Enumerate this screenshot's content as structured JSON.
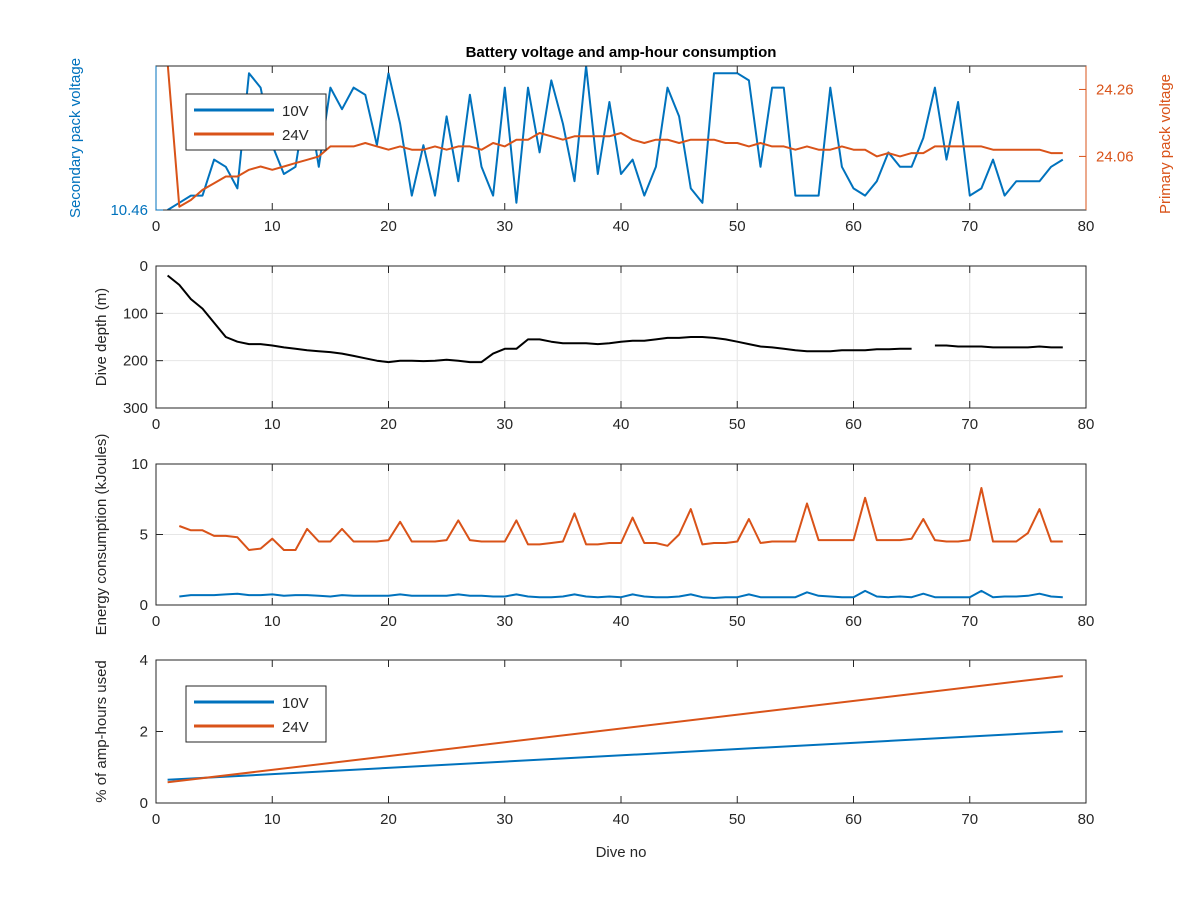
{
  "figure_title": "Battery voltage and amp-hour consumption",
  "colors": {
    "blue": "#0072BD",
    "orange": "#D95319",
    "black": "#000000",
    "grid": "#e6e6e6",
    "axis": "#262626"
  },
  "chart_data": [
    {
      "type": "line",
      "title": "Battery voltage and amp-hour consumption",
      "xlabel": "",
      "ylabel": "Secondary pack voltage",
      "ylabel_right": "Primary pack voltage",
      "xlim": [
        0,
        80
      ],
      "ylim": [
        10.46,
        10.66
      ],
      "ylim_right": [
        23.9,
        24.33
      ],
      "xticks": [
        0,
        10,
        20,
        30,
        40,
        50,
        60,
        70,
        80
      ],
      "yticks": [
        10.46
      ],
      "yticks_right": [
        24.06,
        24.26
      ],
      "grid": false,
      "legend": {
        "placement": "top-left",
        "entries": [
          "10V",
          "24V"
        ]
      },
      "series": [
        {
          "name": "10V",
          "axis": "left",
          "color": "#0072BD",
          "x": [
            1,
            2,
            3,
            4,
            5,
            6,
            7,
            8,
            9,
            10,
            11,
            12,
            13,
            14,
            15,
            16,
            17,
            18,
            19,
            20,
            21,
            22,
            23,
            24,
            25,
            26,
            27,
            28,
            29,
            30,
            31,
            32,
            33,
            34,
            35,
            36,
            37,
            38,
            39,
            40,
            41,
            42,
            43,
            44,
            45,
            46,
            47,
            48,
            49,
            50,
            51,
            52,
            53,
            54,
            55,
            56,
            57,
            58,
            59,
            60,
            61,
            62,
            63,
            64,
            65,
            66,
            67,
            68,
            69,
            70,
            71,
            72,
            73,
            74,
            75,
            76,
            77,
            78
          ],
          "y": [
            10.46,
            10.47,
            10.48,
            10.48,
            10.53,
            10.52,
            10.49,
            10.65,
            10.63,
            10.55,
            10.51,
            10.52,
            10.62,
            10.52,
            10.63,
            10.6,
            10.63,
            10.62,
            10.55,
            10.65,
            10.58,
            10.48,
            10.55,
            10.48,
            10.59,
            10.5,
            10.62,
            10.52,
            10.48,
            10.63,
            10.47,
            10.63,
            10.54,
            10.64,
            10.58,
            10.5,
            10.66,
            10.51,
            10.61,
            10.51,
            10.53,
            10.48,
            10.52,
            10.63,
            10.59,
            10.49,
            10.47,
            10.65,
            10.65,
            10.65,
            10.64,
            10.52,
            10.63,
            10.63,
            10.48,
            10.48,
            10.48,
            10.63,
            10.52,
            10.49,
            10.48,
            10.5,
            10.54,
            10.52,
            10.52,
            10.56,
            10.63,
            10.53,
            10.61,
            10.48,
            10.49,
            10.53,
            10.48,
            10.5,
            10.5,
            10.5,
            10.52,
            10.53
          ]
        },
        {
          "name": "24V",
          "axis": "right",
          "color": "#D95319",
          "x": [
            1,
            2,
            3,
            4,
            5,
            6,
            7,
            8,
            9,
            10,
            11,
            12,
            13,
            14,
            15,
            16,
            17,
            18,
            19,
            20,
            21,
            22,
            23,
            24,
            25,
            26,
            27,
            28,
            29,
            30,
            31,
            32,
            33,
            34,
            35,
            36,
            37,
            38,
            39,
            40,
            41,
            42,
            43,
            44,
            45,
            46,
            47,
            48,
            49,
            50,
            51,
            52,
            53,
            54,
            55,
            56,
            57,
            58,
            59,
            60,
            61,
            62,
            63,
            64,
            65,
            66,
            67,
            68,
            69,
            70,
            71,
            72,
            73,
            74,
            75,
            76,
            77,
            78
          ],
          "y": [
            24.34,
            23.91,
            23.93,
            23.96,
            23.98,
            24.0,
            24.0,
            24.02,
            24.03,
            24.02,
            24.03,
            24.04,
            24.05,
            24.06,
            24.09,
            24.09,
            24.09,
            24.1,
            24.09,
            24.08,
            24.09,
            24.08,
            24.08,
            24.09,
            24.08,
            24.09,
            24.09,
            24.08,
            24.1,
            24.09,
            24.11,
            24.11,
            24.13,
            24.12,
            24.11,
            24.12,
            24.12,
            24.12,
            24.12,
            24.13,
            24.11,
            24.1,
            24.11,
            24.11,
            24.1,
            24.11,
            24.11,
            24.11,
            24.1,
            24.1,
            24.09,
            24.1,
            24.09,
            24.09,
            24.08,
            24.09,
            24.08,
            24.08,
            24.09,
            24.08,
            24.08,
            24.06,
            24.07,
            24.06,
            24.07,
            24.07,
            24.09,
            24.09,
            24.09,
            24.09,
            24.09,
            24.08,
            24.08,
            24.08,
            24.08,
            24.08,
            24.07,
            24.07
          ]
        }
      ]
    },
    {
      "type": "line",
      "title": "",
      "xlabel": "",
      "ylabel": "Dive depth (m)",
      "xlim": [
        0,
        80
      ],
      "ylim": [
        0,
        300
      ],
      "y_reversed": true,
      "xticks": [
        0,
        10,
        20,
        30,
        40,
        50,
        60,
        70,
        80
      ],
      "yticks": [
        0,
        100,
        200,
        300
      ],
      "grid": true,
      "series": [
        {
          "color": "#000000",
          "x": [
            1,
            2,
            3,
            4,
            5,
            6,
            7,
            8,
            9,
            10,
            11,
            12,
            13,
            14,
            15,
            16,
            17,
            18,
            19,
            20,
            21,
            22,
            23,
            24,
            25,
            26,
            27,
            28,
            29,
            30,
            31,
            32,
            33,
            34,
            35,
            36,
            37,
            38,
            39,
            40,
            41,
            42,
            43,
            44,
            45,
            46,
            47,
            48,
            49,
            50,
            51,
            52,
            53,
            54,
            55,
            56,
            57,
            58,
            59,
            60,
            61,
            62,
            63,
            64,
            65,
            null,
            67,
            68,
            69,
            70,
            71,
            72,
            73,
            74,
            75,
            76,
            77,
            78
          ],
          "y": [
            20,
            40,
            70,
            90,
            120,
            150,
            160,
            165,
            165,
            168,
            172,
            175,
            178,
            180,
            182,
            185,
            190,
            195,
            200,
            203,
            200,
            200,
            201,
            200,
            198,
            200,
            203,
            203,
            185,
            175,
            175,
            155,
            155,
            160,
            163,
            163,
            163,
            165,
            163,
            160,
            158,
            158,
            155,
            152,
            152,
            150,
            150,
            152,
            155,
            160,
            165,
            170,
            172,
            175,
            178,
            180,
            180,
            180,
            178,
            178,
            178,
            176,
            176,
            175,
            175,
            null,
            168,
            168,
            170,
            170,
            170,
            172,
            172,
            172,
            172,
            170,
            172,
            172
          ]
        }
      ]
    },
    {
      "type": "line",
      "title": "",
      "xlabel": "",
      "ylabel": "Energy consumption (kJoules)",
      "xlim": [
        0,
        80
      ],
      "ylim": [
        0,
        10
      ],
      "xticks": [
        0,
        10,
        20,
        30,
        40,
        50,
        60,
        70,
        80
      ],
      "yticks": [
        0,
        5,
        10
      ],
      "grid": true,
      "series": [
        {
          "name": "10V",
          "color": "#0072BD",
          "x": [
            2,
            3,
            4,
            5,
            6,
            7,
            8,
            9,
            10,
            11,
            12,
            13,
            14,
            15,
            16,
            17,
            18,
            19,
            20,
            21,
            22,
            23,
            24,
            25,
            26,
            27,
            28,
            29,
            30,
            31,
            32,
            33,
            34,
            35,
            36,
            37,
            38,
            39,
            40,
            41,
            42,
            43,
            44,
            45,
            46,
            47,
            48,
            49,
            50,
            51,
            52,
            53,
            54,
            55,
            56,
            57,
            58,
            59,
            60,
            61,
            62,
            63,
            64,
            65,
            66,
            67,
            68,
            69,
            70,
            71,
            72,
            73,
            74,
            75,
            76,
            77,
            78
          ],
          "y": [
            0.6,
            0.7,
            0.7,
            0.7,
            0.75,
            0.8,
            0.7,
            0.7,
            0.75,
            0.65,
            0.7,
            0.7,
            0.65,
            0.6,
            0.7,
            0.65,
            0.65,
            0.65,
            0.65,
            0.75,
            0.65,
            0.65,
            0.65,
            0.65,
            0.75,
            0.65,
            0.65,
            0.6,
            0.6,
            0.75,
            0.6,
            0.55,
            0.55,
            0.6,
            0.75,
            0.6,
            0.55,
            0.6,
            0.55,
            0.75,
            0.6,
            0.55,
            0.55,
            0.6,
            0.75,
            0.55,
            0.5,
            0.55,
            0.55,
            0.75,
            0.55,
            0.55,
            0.55,
            0.55,
            0.9,
            0.65,
            0.6,
            0.55,
            0.55,
            1.0,
            0.6,
            0.55,
            0.6,
            0.55,
            0.8,
            0.55,
            0.55,
            0.55,
            0.55,
            1.0,
            0.55,
            0.6,
            0.6,
            0.65,
            0.8,
            0.6,
            0.55
          ]
        },
        {
          "name": "24V",
          "color": "#D95319",
          "x": [
            2,
            3,
            4,
            5,
            6,
            7,
            8,
            9,
            10,
            11,
            12,
            13,
            14,
            15,
            16,
            17,
            18,
            19,
            20,
            21,
            22,
            23,
            24,
            25,
            26,
            27,
            28,
            29,
            30,
            31,
            32,
            33,
            34,
            35,
            36,
            37,
            38,
            39,
            40,
            41,
            42,
            43,
            44,
            45,
            46,
            47,
            48,
            49,
            50,
            51,
            52,
            53,
            54,
            55,
            56,
            57,
            58,
            59,
            60,
            61,
            62,
            63,
            64,
            65,
            66,
            67,
            68,
            69,
            70,
            71,
            72,
            73,
            74,
            75,
            76,
            77,
            78
          ],
          "y": [
            5.6,
            5.3,
            5.3,
            4.9,
            4.9,
            4.8,
            3.9,
            4.0,
            4.7,
            3.9,
            3.9,
            5.4,
            4.5,
            4.5,
            5.4,
            4.5,
            4.5,
            4.5,
            4.6,
            5.9,
            4.5,
            4.5,
            4.5,
            4.6,
            6.0,
            4.6,
            4.5,
            4.5,
            4.5,
            6.0,
            4.3,
            4.3,
            4.4,
            4.5,
            6.5,
            4.3,
            4.3,
            4.4,
            4.4,
            6.2,
            4.4,
            4.4,
            4.2,
            5.0,
            6.8,
            4.3,
            4.4,
            4.4,
            4.5,
            6.1,
            4.4,
            4.5,
            4.5,
            4.5,
            7.2,
            4.6,
            4.6,
            4.6,
            4.6,
            7.6,
            4.6,
            4.6,
            4.6,
            4.7,
            6.1,
            4.6,
            4.5,
            4.5,
            4.6,
            8.3,
            4.5,
            4.5,
            4.5,
            5.1,
            6.8,
            4.5,
            4.5
          ]
        }
      ]
    },
    {
      "type": "line",
      "title": "",
      "xlabel": "Dive no",
      "ylabel": "% of amp-hours used",
      "xlim": [
        0,
        80
      ],
      "ylim": [
        0,
        4
      ],
      "xticks": [
        0,
        10,
        20,
        30,
        40,
        50,
        60,
        70,
        80
      ],
      "yticks": [
        0,
        2,
        4
      ],
      "grid": false,
      "legend": {
        "placement": "top-left",
        "entries": [
          "10V",
          "24V"
        ]
      },
      "series": [
        {
          "name": "10V",
          "color": "#0072BD",
          "x": [
            1,
            78
          ],
          "y": [
            0.65,
            2.0
          ]
        },
        {
          "name": "24V",
          "color": "#D95319",
          "x": [
            1,
            78
          ],
          "y": [
            0.58,
            3.55
          ]
        }
      ]
    }
  ]
}
